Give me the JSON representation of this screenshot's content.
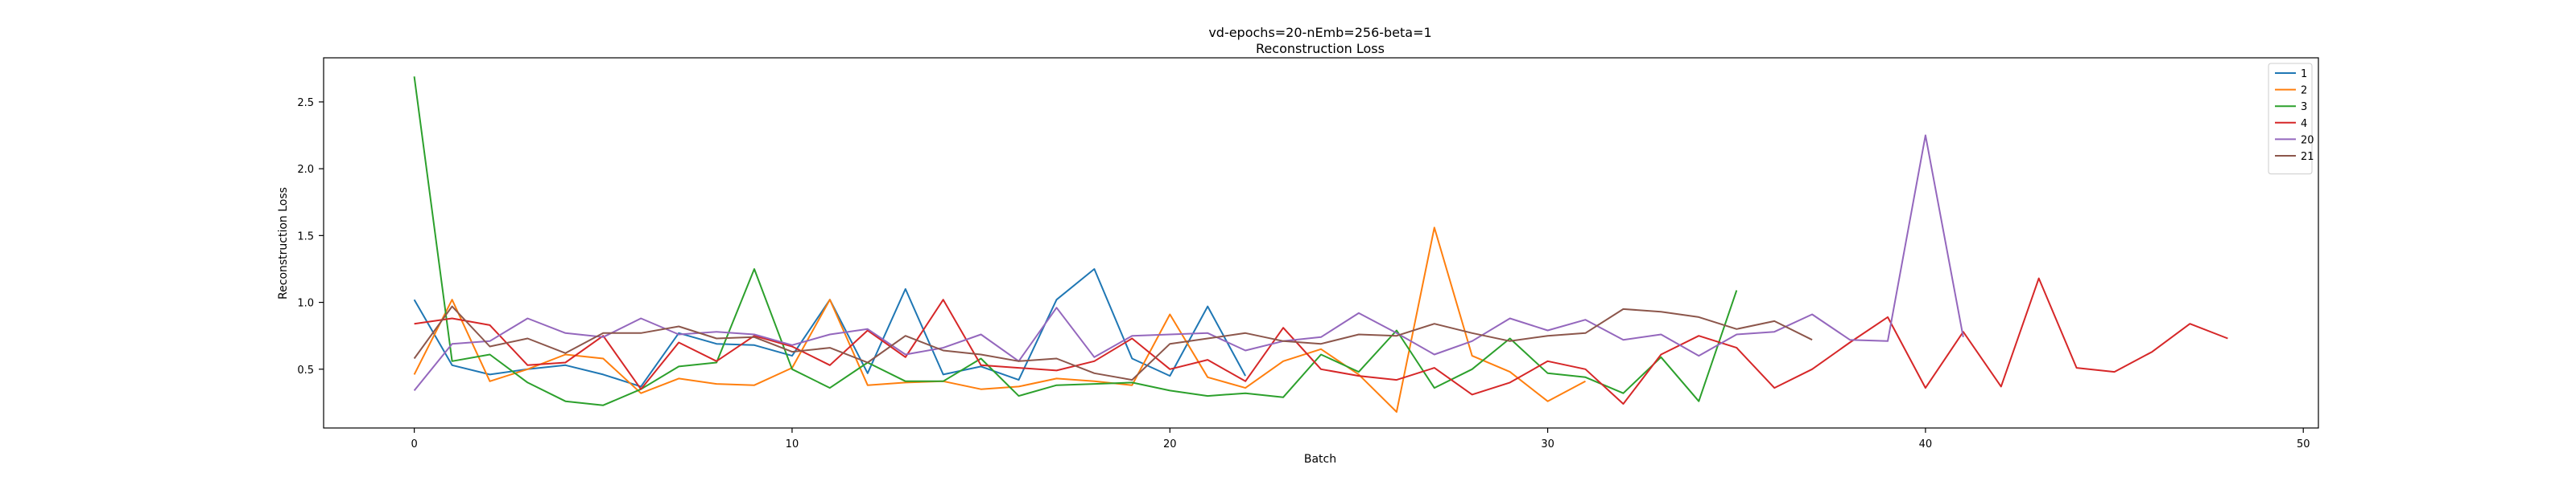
{
  "chart_data": {
    "type": "line",
    "title": "vd-epochs=20-nEmb=256-beta=1",
    "subtitle": "Reconstruction Loss",
    "xlabel": "Batch",
    "ylabel": "Reconstruction Loss",
    "xlim": [
      -2.4,
      50.4
    ],
    "ylim": [
      0.06,
      2.83
    ],
    "xticks": [
      0,
      10,
      20,
      30,
      40,
      50
    ],
    "yticks": [
      0.5,
      1.0,
      1.5,
      2.0,
      2.5
    ],
    "xtick_labels": [
      "0",
      "10",
      "20",
      "30",
      "40",
      "50"
    ],
    "ytick_labels": [
      "0.5",
      "1.0",
      "1.5",
      "2.0",
      "2.5"
    ],
    "grid": false,
    "legend_position": "top-right",
    "series": [
      {
        "name": "1",
        "color": "#1f77b4",
        "x": [
          0,
          1,
          2,
          3,
          4,
          5,
          6,
          7,
          8,
          9,
          10,
          11,
          12,
          13,
          14,
          15,
          16,
          17,
          18,
          19,
          20,
          21,
          22
        ],
        "values": [
          1.02,
          0.53,
          0.46,
          0.5,
          0.53,
          0.46,
          0.37,
          0.77,
          0.69,
          0.68,
          0.6,
          1.02,
          0.47,
          1.1,
          0.46,
          0.52,
          0.42,
          1.02,
          1.25,
          0.58,
          0.45,
          0.97,
          0.45
        ]
      },
      {
        "name": "2",
        "color": "#ff7f0e",
        "x": [
          0,
          1,
          2,
          3,
          4,
          5,
          6,
          7,
          8,
          9,
          10,
          11,
          12,
          13,
          14,
          15,
          16,
          17,
          18,
          19,
          20,
          21,
          22,
          23,
          24,
          25,
          26,
          27,
          28,
          29,
          30,
          31
        ],
        "values": [
          0.46,
          1.02,
          0.41,
          0.5,
          0.61,
          0.58,
          0.32,
          0.43,
          0.39,
          0.38,
          0.51,
          1.02,
          0.38,
          0.4,
          0.41,
          0.35,
          0.37,
          0.43,
          0.41,
          0.38,
          0.91,
          0.44,
          0.36,
          0.56,
          0.65,
          0.46,
          0.18,
          1.56,
          0.6,
          0.48,
          0.26,
          0.41
        ]
      },
      {
        "name": "3",
        "color": "#2ca02c",
        "x": [
          0,
          1,
          2,
          3,
          4,
          5,
          6,
          7,
          8,
          9,
          10,
          11,
          12,
          13,
          14,
          15,
          16,
          17,
          18,
          19,
          20,
          21,
          22,
          23,
          24,
          25,
          26,
          27,
          28,
          29,
          30,
          31,
          32,
          33,
          34,
          35
        ],
        "values": [
          2.69,
          0.56,
          0.61,
          0.4,
          0.26,
          0.23,
          0.35,
          0.52,
          0.55,
          1.25,
          0.5,
          0.36,
          0.55,
          0.41,
          0.41,
          0.58,
          0.3,
          0.38,
          0.39,
          0.4,
          0.34,
          0.3,
          0.32,
          0.29,
          0.61,
          0.48,
          0.79,
          0.36,
          0.5,
          0.73,
          0.47,
          0.44,
          0.32,
          0.59,
          0.26,
          1.09
        ]
      },
      {
        "name": "4",
        "color": "#d62728",
        "x": [
          0,
          1,
          2,
          3,
          4,
          5,
          6,
          7,
          8,
          9,
          10,
          11,
          12,
          13,
          14,
          15,
          16,
          17,
          18,
          19,
          20,
          21,
          22,
          23,
          24,
          25,
          26,
          27,
          28,
          29,
          30,
          31,
          32,
          33,
          34,
          35,
          36,
          37,
          38,
          39,
          40,
          41,
          42,
          43,
          44,
          45,
          46,
          47,
          48
        ],
        "values": [
          0.84,
          0.88,
          0.83,
          0.53,
          0.55,
          0.75,
          0.35,
          0.7,
          0.56,
          0.75,
          0.67,
          0.53,
          0.79,
          0.59,
          1.02,
          0.53,
          0.51,
          0.49,
          0.56,
          0.73,
          0.5,
          0.57,
          0.41,
          0.81,
          0.5,
          0.45,
          0.42,
          0.51,
          0.31,
          0.4,
          0.56,
          0.5,
          0.24,
          0.61,
          0.75,
          0.66,
          0.36,
          0.5,
          0.7,
          0.89,
          0.36,
          0.78,
          0.37,
          1.18,
          0.51,
          0.48,
          0.63,
          0.84,
          0.73
        ]
      },
      {
        "name": "20",
        "color": "#9467bd",
        "x": [
          0,
          1,
          2,
          3,
          4,
          5,
          6,
          7,
          8,
          9,
          10,
          11,
          12,
          13,
          14,
          15,
          16,
          17,
          18,
          19,
          20,
          21,
          22,
          23,
          24,
          25,
          26,
          27,
          28,
          29,
          30,
          31,
          32,
          33,
          34,
          35,
          36,
          37,
          38,
          39,
          40,
          41
        ],
        "values": [
          0.34,
          0.69,
          0.71,
          0.88,
          0.77,
          0.74,
          0.88,
          0.76,
          0.78,
          0.76,
          0.68,
          0.76,
          0.8,
          0.61,
          0.66,
          0.76,
          0.56,
          0.96,
          0.59,
          0.75,
          0.76,
          0.77,
          0.64,
          0.71,
          0.74,
          0.92,
          0.77,
          0.61,
          0.71,
          0.88,
          0.79,
          0.87,
          0.72,
          0.76,
          0.6,
          0.76,
          0.78,
          0.91,
          0.72,
          0.71,
          2.25,
          0.74
        ]
      },
      {
        "name": "21",
        "color": "#8c564b",
        "x": [
          0,
          1,
          2,
          3,
          4,
          5,
          6,
          7,
          8,
          9,
          10,
          11,
          12,
          13,
          14,
          15,
          16,
          17,
          18,
          19,
          20,
          21,
          22,
          23,
          24,
          25,
          26,
          27,
          28,
          29,
          30,
          31,
          32,
          33,
          34,
          35,
          36,
          37
        ],
        "values": [
          0.58,
          0.97,
          0.67,
          0.73,
          0.62,
          0.77,
          0.77,
          0.82,
          0.73,
          0.74,
          0.63,
          0.66,
          0.55,
          0.75,
          0.64,
          0.61,
          0.56,
          0.58,
          0.47,
          0.42,
          0.69,
          0.73,
          0.77,
          0.71,
          0.69,
          0.76,
          0.75,
          0.84,
          0.77,
          0.71,
          0.75,
          0.77,
          0.95,
          0.93,
          0.89,
          0.8,
          0.86,
          0.72
        ]
      }
    ]
  }
}
